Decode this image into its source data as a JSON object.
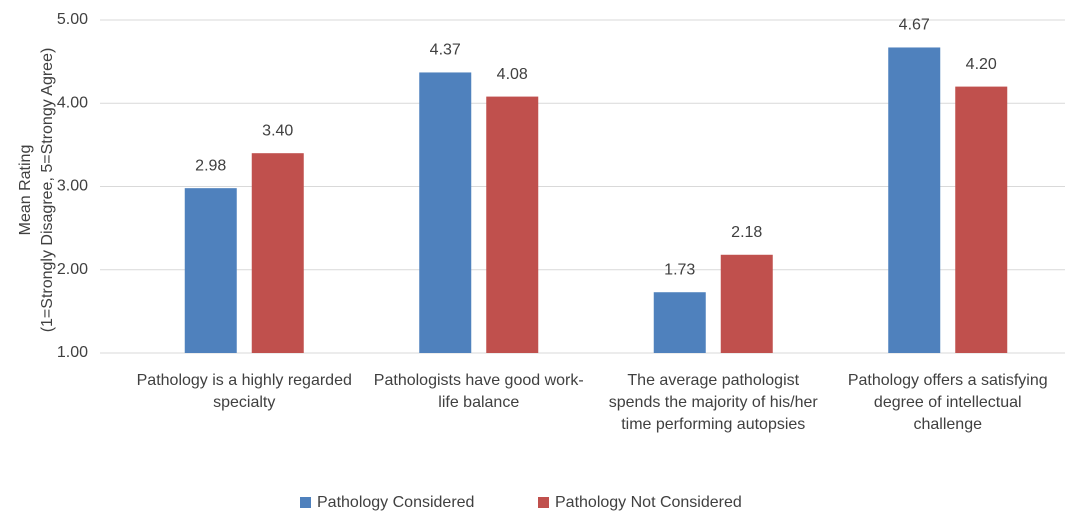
{
  "chart_data": {
    "type": "bar",
    "y_axis_label": [
      "Mean Rating",
      "(1=Strongly Disagree, 5=Strongy Agree)"
    ],
    "categories": [
      "Pathology is a highly regarded specialty",
      "Pathologists have good work-life balance",
      "The average pathologist spends the majority of his/her time performing autopsies",
      "Pathology offers a satisfying degree of intellectual challenge"
    ],
    "series": [
      {
        "name": "Pathology Considered",
        "color": "#4f81bd",
        "values": [
          2.98,
          4.37,
          1.73,
          4.67
        ],
        "value_labels": [
          "2.98",
          "4.37",
          "1.73",
          "4.67"
        ]
      },
      {
        "name": "Pathology Not Considered",
        "color": "#c0504d",
        "values": [
          3.4,
          4.08,
          2.18,
          4.2
        ],
        "value_labels": [
          "3.40",
          "4.08",
          "2.18",
          "4.20"
        ]
      }
    ],
    "ylim": [
      1,
      5
    ],
    "yticks": [
      {
        "value": 1,
        "label": "1.00"
      },
      {
        "value": 2,
        "label": "2.00"
      },
      {
        "value": 3,
        "label": "3.00"
      },
      {
        "value": 4,
        "label": "4.00"
      },
      {
        "value": 5,
        "label": "5.00"
      }
    ],
    "grid": true
  }
}
